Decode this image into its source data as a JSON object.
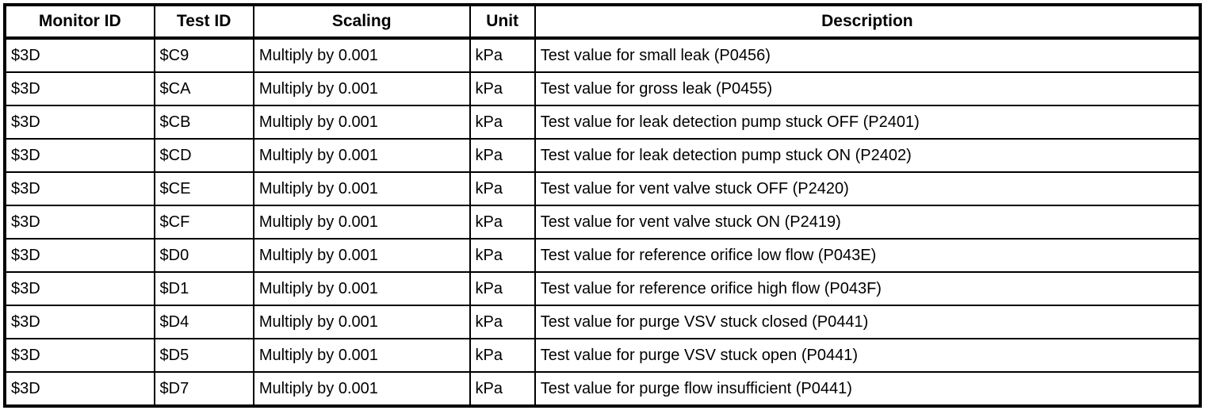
{
  "table": {
    "column_keys": [
      "monitor-id",
      "test-id",
      "scaling",
      "unit",
      "description"
    ],
    "columns": [
      "Monitor ID",
      "Test ID",
      "Scaling",
      "Unit",
      "Description"
    ],
    "rows": [
      [
        "$3D",
        "$C9",
        "Multiply by 0.001",
        "kPa",
        "Test value for small leak (P0456)"
      ],
      [
        "$3D",
        "$CA",
        "Multiply by 0.001",
        "kPa",
        "Test value for gross leak (P0455)"
      ],
      [
        "$3D",
        "$CB",
        "Multiply by 0.001",
        "kPa",
        "Test value for leak detection pump stuck OFF (P2401)"
      ],
      [
        "$3D",
        "$CD",
        "Multiply by 0.001",
        "kPa",
        "Test value for leak detection pump stuck ON (P2402)"
      ],
      [
        "$3D",
        "$CE",
        "Multiply by 0.001",
        "kPa",
        "Test value for vent valve stuck OFF (P2420)"
      ],
      [
        "$3D",
        "$CF",
        "Multiply by 0.001",
        "kPa",
        "Test value for vent valve stuck ON (P2419)"
      ],
      [
        "$3D",
        "$D0",
        "Multiply by 0.001",
        "kPa",
        "Test value for reference orifice low flow (P043E)"
      ],
      [
        "$3D",
        "$D1",
        "Multiply by 0.001",
        "kPa",
        "Test value for reference orifice high flow (P043F)"
      ],
      [
        "$3D",
        "$D4",
        "Multiply by 0.001",
        "kPa",
        "Test value for purge VSV stuck closed (P0441)"
      ],
      [
        "$3D",
        "$D5",
        "Multiply by 0.001",
        "kPa",
        "Test value for purge VSV stuck open (P0441)"
      ],
      [
        "$3D",
        "$D7",
        "Multiply by 0.001",
        "kPa",
        "Test value for purge flow insufficient (P0441)"
      ]
    ],
    "colors": {
      "border": "#000000",
      "background": "#ffffff",
      "text": "#000000"
    }
  }
}
